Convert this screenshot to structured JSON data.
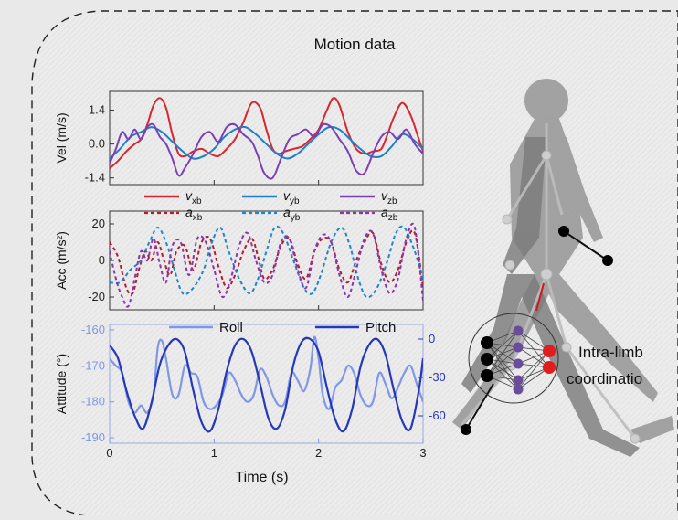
{
  "title": "Motion data",
  "label_coordination": [
    "Intra-limb",
    "coordinatio"
  ],
  "x_label": "Time (s)",
  "x_ticks": [
    "0",
    "1",
    "2",
    "3"
  ],
  "colors": {
    "vx": "#d6262f",
    "vy": "#1f7fc8",
    "vz": "#7b3fb4",
    "roll": "#7f97e6",
    "pitch": "#2637b8",
    "figure": "#8f8f8f",
    "joint": "#000000",
    "output_node": "#e01c1c",
    "hidden_node": "#6a4c9a"
  },
  "chart_data": [
    {
      "type": "line",
      "panel": "velocity",
      "ylabel": "Vel (m/s)",
      "ylim": [
        -1.6,
        2.1
      ],
      "xlim": [
        0,
        3
      ],
      "yticks": [
        "1.4",
        "0.0",
        "-1.4"
      ],
      "ytick_values": [
        1.4,
        0.0,
        -1.4
      ],
      "grid": false,
      "legend": [
        "v_xb",
        "v_yb",
        "v_zb"
      ],
      "series": [
        {
          "name": "v_xb",
          "color": "#d6262f",
          "dash": false,
          "x": [
            0,
            0.08,
            0.16,
            0.24,
            0.3,
            0.36,
            0.42,
            0.48,
            0.54,
            0.6,
            0.66,
            0.72,
            0.8,
            0.88,
            0.96,
            1.04,
            1.12,
            1.2,
            1.28,
            1.36,
            1.44,
            1.5,
            1.56,
            1.62,
            1.68,
            1.76,
            1.84,
            1.92,
            2.0,
            2.08,
            2.14,
            2.2,
            2.28,
            2.36,
            2.44,
            2.52,
            2.6,
            2.66,
            2.72,
            2.8,
            2.88,
            2.96,
            3.0
          ],
          "y": [
            -1.0,
            -0.7,
            -0.3,
            0.0,
            0.2,
            0.8,
            1.6,
            1.9,
            1.5,
            0.4,
            -0.4,
            -0.5,
            -0.3,
            -0.2,
            -0.4,
            -0.5,
            -0.2,
            0.2,
            0.9,
            1.7,
            1.5,
            0.6,
            -0.2,
            -0.4,
            -0.3,
            -0.2,
            -0.1,
            0.2,
            0.6,
            1.4,
            1.9,
            1.6,
            0.5,
            -0.2,
            -0.4,
            -0.3,
            -0.2,
            0.4,
            1.1,
            1.7,
            1.2,
            0.2,
            -0.3
          ]
        },
        {
          "name": "v_yb",
          "color": "#1f7fc8",
          "dash": false,
          "x": [
            0,
            0.1,
            0.2,
            0.3,
            0.4,
            0.5,
            0.6,
            0.7,
            0.8,
            0.9,
            1.0,
            1.1,
            1.2,
            1.3,
            1.4,
            1.5,
            1.6,
            1.7,
            1.8,
            1.9,
            2.0,
            2.1,
            2.2,
            2.3,
            2.4,
            2.5,
            2.6,
            2.7,
            2.8,
            2.9,
            3.0
          ],
          "y": [
            -0.6,
            -0.2,
            0.3,
            0.5,
            0.7,
            0.5,
            0.1,
            -0.3,
            -0.6,
            -0.5,
            -0.2,
            0.3,
            0.6,
            0.7,
            0.4,
            0.0,
            -0.4,
            -0.6,
            -0.4,
            0.0,
            0.4,
            0.7,
            0.6,
            0.2,
            -0.2,
            -0.5,
            -0.5,
            -0.1,
            0.4,
            0.2,
            -0.2
          ]
        },
        {
          "name": "v_zb",
          "color": "#7b3fb4",
          "dash": false,
          "x": [
            0,
            0.06,
            0.12,
            0.18,
            0.24,
            0.3,
            0.36,
            0.42,
            0.48,
            0.54,
            0.6,
            0.66,
            0.72,
            0.8,
            0.88,
            0.96,
            1.04,
            1.12,
            1.2,
            1.28,
            1.36,
            1.42,
            1.48,
            1.56,
            1.64,
            1.72,
            1.8,
            1.88,
            1.96,
            2.04,
            2.12,
            2.2,
            2.28,
            2.36,
            2.44,
            2.52,
            2.6,
            2.68,
            2.76,
            2.84,
            2.92,
            3.0
          ],
          "y": [
            -0.8,
            -0.2,
            0.5,
            0.2,
            0.6,
            0.2,
            0.7,
            0.8,
            0.3,
            0.0,
            -0.6,
            -1.3,
            -1.0,
            -0.4,
            0.3,
            0.5,
            0.1,
            0.7,
            0.8,
            0.4,
            0.1,
            -0.5,
            -1.2,
            -1.4,
            -0.6,
            0.2,
            0.4,
            0.6,
            0.3,
            0.8,
            0.7,
            0.2,
            -0.3,
            -1.1,
            -1.2,
            -0.4,
            0.3,
            0.5,
            0.2,
            0.6,
            0.0,
            -0.4
          ]
        }
      ]
    },
    {
      "type": "line",
      "panel": "acceleration",
      "ylabel": "Acc (m/s²)",
      "ylim": [
        -26,
        26
      ],
      "xlim": [
        0,
        3
      ],
      "yticks": [
        "20",
        "0",
        "-20"
      ],
      "ytick_values": [
        20,
        0,
        -20
      ],
      "grid": false,
      "legend": [
        "a_xb",
        "a_yb",
        "a_zb"
      ],
      "series": [
        {
          "name": "a_xb",
          "color": "#b31e2a",
          "dash": true,
          "x": [
            0,
            0.08,
            0.16,
            0.22,
            0.28,
            0.34,
            0.4,
            0.46,
            0.52,
            0.58,
            0.64,
            0.72,
            0.8,
            0.88,
            0.96,
            1.04,
            1.12,
            1.2,
            1.28,
            1.36,
            1.42,
            1.48,
            1.56,
            1.64,
            1.72,
            1.8,
            1.88,
            1.96,
            2.04,
            2.12,
            2.2,
            2.28,
            2.36,
            2.44,
            2.52,
            2.6,
            2.68,
            2.76,
            2.84,
            2.92,
            3.0
          ],
          "y": [
            10,
            2,
            -15,
            -18,
            -5,
            5,
            0,
            10,
            0,
            -8,
            5,
            8,
            -5,
            10,
            12,
            -3,
            -15,
            -8,
            5,
            12,
            2,
            -10,
            -5,
            8,
            12,
            -2,
            -10,
            5,
            12,
            10,
            -5,
            -12,
            0,
            10,
            15,
            -2,
            -12,
            -5,
            10,
            15,
            -15
          ]
        },
        {
          "name": "a_yb",
          "color": "#1f86c9",
          "dash": true,
          "x": [
            0,
            0.1,
            0.2,
            0.3,
            0.38,
            0.46,
            0.54,
            0.62,
            0.7,
            0.8,
            0.9,
            0.98,
            1.06,
            1.14,
            1.24,
            1.34,
            1.42,
            1.5,
            1.58,
            1.66,
            1.76,
            1.86,
            1.94,
            2.02,
            2.12,
            2.22,
            2.3,
            2.38,
            2.46,
            2.56,
            2.66,
            2.74,
            2.82,
            2.92,
            3.0
          ],
          "y": [
            -12,
            -12,
            -5,
            0,
            10,
            18,
            10,
            -5,
            -18,
            -15,
            -5,
            10,
            18,
            5,
            -10,
            -18,
            -10,
            5,
            18,
            15,
            0,
            -15,
            -18,
            -8,
            10,
            18,
            8,
            -10,
            -20,
            -15,
            0,
            15,
            18,
            5,
            -10
          ]
        },
        {
          "name": "a_zb",
          "color": "#8a35b0",
          "dash": true,
          "x": [
            0,
            0.06,
            0.12,
            0.18,
            0.24,
            0.3,
            0.36,
            0.42,
            0.48,
            0.54,
            0.6,
            0.68,
            0.76,
            0.84,
            0.92,
            1.0,
            1.08,
            1.16,
            1.24,
            1.32,
            1.4,
            1.48,
            1.56,
            1.64,
            1.72,
            1.8,
            1.88,
            1.96,
            2.04,
            2.12,
            2.2,
            2.28,
            2.36,
            2.44,
            2.52,
            2.6,
            2.68,
            2.76,
            2.84,
            2.92,
            3.0
          ],
          "y": [
            5,
            -10,
            -20,
            -25,
            -10,
            5,
            0,
            12,
            -2,
            -12,
            8,
            10,
            -8,
            12,
            10,
            -5,
            -20,
            -10,
            8,
            15,
            0,
            -12,
            -8,
            10,
            12,
            -5,
            -15,
            5,
            14,
            10,
            -8,
            -20,
            -5,
            12,
            15,
            -5,
            -18,
            -10,
            12,
            18,
            -22
          ]
        }
      ]
    },
    {
      "type": "line",
      "panel": "attitude",
      "ylabel": "Attitude (°)",
      "ylim": [
        -191,
        -159
      ],
      "xlim": [
        0,
        3
      ],
      "yticks": [
        "-160",
        "-170",
        "-180",
        "-190"
      ],
      "ytick_values": [
        -160,
        -170,
        -180,
        -190
      ],
      "y2lim": [
        -80,
        10
      ],
      "y2ticks": [
        "0",
        "-30",
        "-60"
      ],
      "y2tick_values": [
        0,
        -30,
        -60
      ],
      "grid": false,
      "legend": [
        "Roll",
        "Pitch"
      ],
      "series": [
        {
          "name": "Roll",
          "color": "#7f97e6",
          "axis": "left",
          "x": [
            0,
            0.06,
            0.12,
            0.18,
            0.24,
            0.3,
            0.36,
            0.42,
            0.46,
            0.5,
            0.54,
            0.6,
            0.66,
            0.72,
            0.78,
            0.84,
            0.9,
            0.96,
            1.02,
            1.08,
            1.14,
            1.2,
            1.26,
            1.32,
            1.38,
            1.44,
            1.5,
            1.56,
            1.62,
            1.68,
            1.74,
            1.8,
            1.86,
            1.92,
            1.96,
            2.0,
            2.04,
            2.1,
            2.16,
            2.22,
            2.28,
            2.34,
            2.4,
            2.46,
            2.52,
            2.58,
            2.64,
            2.7,
            2.76,
            2.82,
            2.88,
            2.94,
            3.0
          ],
          "y": [
            -168,
            -170,
            -172,
            -180,
            -183,
            -181,
            -183,
            -178,
            -165,
            -163,
            -168,
            -178,
            -178,
            -170,
            -172,
            -173,
            -180,
            -182,
            -181,
            -178,
            -172,
            -174,
            -178,
            -180,
            -178,
            -171,
            -173,
            -178,
            -181,
            -180,
            -172,
            -174,
            -177,
            -171,
            -162,
            -168,
            -178,
            -182,
            -176,
            -174,
            -170,
            -172,
            -178,
            -181,
            -180,
            -172,
            -175,
            -179,
            -176,
            -172,
            -170,
            -175,
            -180
          ]
        },
        {
          "name": "Pitch",
          "color": "#2637b8",
          "axis": "right",
          "x": [
            0,
            0.08,
            0.16,
            0.24,
            0.32,
            0.4,
            0.48,
            0.56,
            0.64,
            0.72,
            0.8,
            0.88,
            0.96,
            1.04,
            1.12,
            1.2,
            1.28,
            1.36,
            1.44,
            1.52,
            1.6,
            1.68,
            1.76,
            1.84,
            1.92,
            2.0,
            2.08,
            2.16,
            2.24,
            2.32,
            2.4,
            2.48,
            2.56,
            2.64,
            2.72,
            2.8,
            2.88,
            2.96,
            3.0
          ],
          "y": [
            -5,
            -15,
            -40,
            -60,
            -70,
            -50,
            -20,
            -5,
            0,
            -10,
            -40,
            -65,
            -72,
            -55,
            -25,
            -5,
            0,
            -10,
            -35,
            -62,
            -70,
            -55,
            -20,
            -2,
            0,
            -10,
            -38,
            -63,
            -72,
            -55,
            -22,
            -5,
            0,
            -12,
            -40,
            -64,
            -70,
            -40,
            -15
          ]
        }
      ]
    }
  ]
}
